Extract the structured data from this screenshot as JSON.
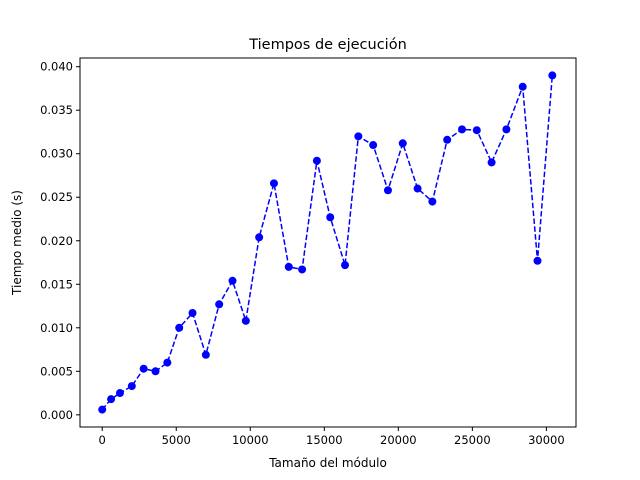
{
  "chart_data": {
    "type": "line",
    "title": "Tiempos de ejecución",
    "xlabel": "Tamaño del módulo",
    "ylabel": "Tiempo medio (s)",
    "xlim": [
      -1500,
      32000
    ],
    "ylim": [
      -0.0014,
      0.041
    ],
    "xticks": [
      0,
      5000,
      10000,
      15000,
      20000,
      25000,
      30000
    ],
    "xtick_labels": [
      "0",
      "5000",
      "10000",
      "15000",
      "20000",
      "25000",
      "30000"
    ],
    "yticks": [
      0.0,
      0.005,
      0.01,
      0.015,
      0.02,
      0.025,
      0.03,
      0.035,
      0.04
    ],
    "ytick_labels": [
      "0.000",
      "0.005",
      "0.010",
      "0.015",
      "0.020",
      "0.025",
      "0.030",
      "0.035",
      "0.040"
    ],
    "grid": false,
    "series": [
      {
        "color": "#0000ff",
        "line_style": "dashed",
        "marker": "circle",
        "x": [
          0,
          600,
          1200,
          2000,
          2800,
          3600,
          4400,
          5200,
          6100,
          7000,
          7900,
          8800,
          9700,
          10600,
          11600,
          12600,
          13500,
          14500,
          15400,
          16400,
          17300,
          18300,
          19300,
          20300,
          21300,
          22300,
          23300,
          24300,
          25300,
          26300,
          27300,
          28400,
          29400,
          30400
        ],
        "y": [
          0.0006,
          0.0018,
          0.0025,
          0.0033,
          0.0053,
          0.005,
          0.006,
          0.01,
          0.0117,
          0.0069,
          0.0127,
          0.0154,
          0.0108,
          0.0204,
          0.0266,
          0.017,
          0.0167,
          0.0292,
          0.0227,
          0.0172,
          0.032,
          0.031,
          0.0258,
          0.0312,
          0.026,
          0.0245,
          0.0316,
          0.0328,
          0.0327,
          0.029,
          0.0328,
          0.0377,
          0.0177,
          0.039
        ]
      }
    ]
  }
}
